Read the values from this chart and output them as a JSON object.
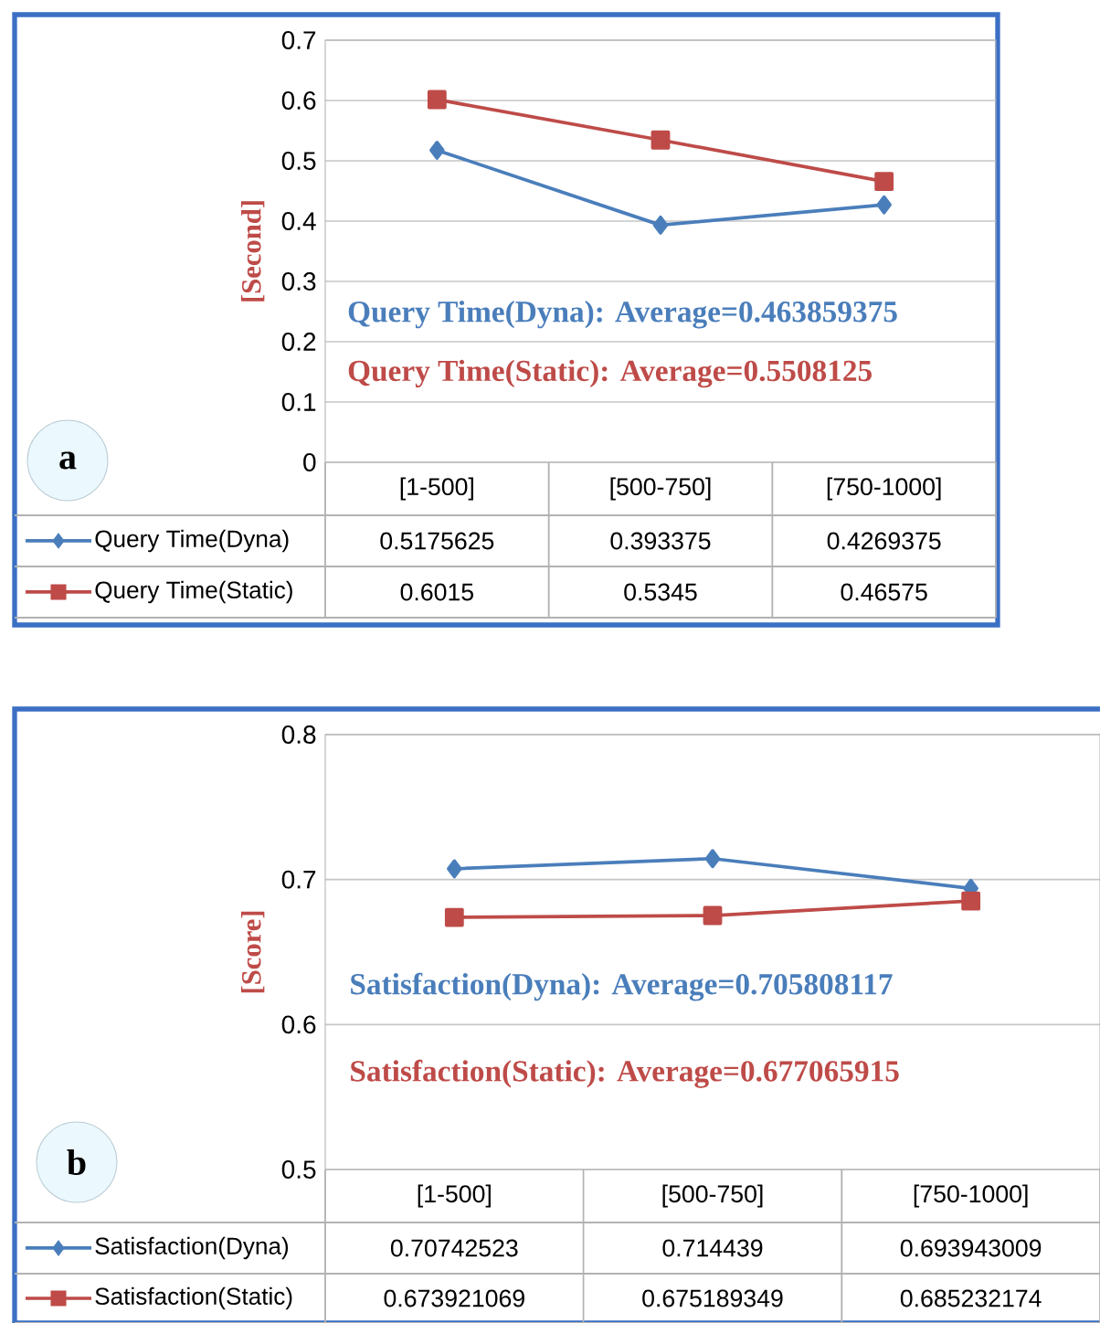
{
  "chart_data": [
    {
      "type": "line",
      "title": "a",
      "ylabel": "[Second]",
      "categories": [
        "[1-500]",
        "[500-750]",
        "[750-1000]"
      ],
      "series": [
        {
          "name": "Query Time(Dyna)",
          "color": "#4a7ebb",
          "marker": "diamond",
          "values": [
            0.5175625,
            0.393375,
            0.4269375
          ]
        },
        {
          "name": "Query Time(Static)",
          "color": "#be4b48",
          "marker": "square",
          "values": [
            0.6015,
            0.5345,
            0.46575
          ]
        }
      ],
      "annotations": [
        "Query Time(Dyna): Average=0.463859375",
        "Query Time(Static): Average=0.5508125"
      ],
      "ylim": [
        0,
        0.7
      ],
      "yticks": [
        0,
        0.1,
        0.2,
        0.3,
        0.4,
        0.5,
        0.6,
        0.7
      ],
      "grid": "y",
      "legend": "bottom",
      "data_labels": true
    },
    {
      "type": "line",
      "title": "b",
      "ylabel": "[Score]",
      "categories": [
        "[1-500]",
        "[500-750]",
        "[750-1000]"
      ],
      "series": [
        {
          "name": "Satisfaction(Dyna)",
          "color": "#4a7ebb",
          "marker": "diamond",
          "values": [
            0.70742523,
            0.714439,
            0.693943009
          ]
        },
        {
          "name": "Satisfaction(Static)",
          "color": "#be4b48",
          "marker": "square",
          "values": [
            0.673921069,
            0.675189349,
            0.685232174
          ]
        }
      ],
      "annotations": [
        "Satisfaction(Dyna): Average=0.705808117",
        "Satisfaction(Static): Average=0.677065915"
      ],
      "ylim": [
        0.5,
        0.8
      ],
      "yticks": [
        0.5,
        0.6,
        0.7,
        0.8
      ],
      "grid": "y",
      "legend": "bottom",
      "data_labels": true
    }
  ]
}
